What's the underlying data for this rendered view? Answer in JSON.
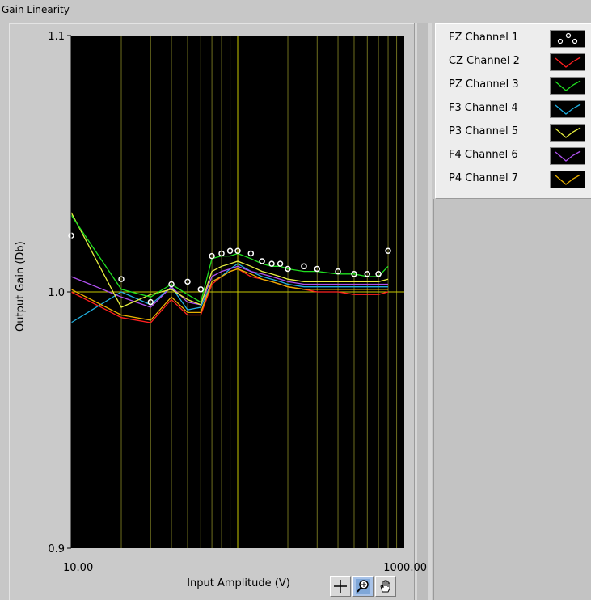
{
  "window": {
    "title": "Gain Linearity"
  },
  "colors": {
    "plot_bg": "#000000",
    "grid": "#6e6e1e",
    "reference": "#c8c800"
  },
  "legend": {
    "items": [
      {
        "label": "FZ Channel 1",
        "color": "#ffffff",
        "style": "circles"
      },
      {
        "label": "CZ Channel 2",
        "color": "#ff2020",
        "style": "line"
      },
      {
        "label": "PZ Channel 3",
        "color": "#20e020",
        "style": "line"
      },
      {
        "label": "F3 Channel 4",
        "color": "#20b0e0",
        "style": "line"
      },
      {
        "label": "P3 Channel 5",
        "color": "#e8f040",
        "style": "line"
      },
      {
        "label": "F4 Channel 6",
        "color": "#b050f0",
        "style": "line"
      },
      {
        "label": "P4 Channel 7",
        "color": "#e8b000",
        "style": "line"
      }
    ]
  },
  "toolbar": {
    "tools": [
      "cursor-crosshair-icon",
      "zoom-icon",
      "pan-hand-icon"
    ]
  },
  "chart_data": {
    "type": "line",
    "title": "Gain Linearity",
    "xlabel": "Input Amplitude (V)",
    "ylabel": "Output Gain (Db)",
    "xscale": "log",
    "xlim": [
      10,
      1000
    ],
    "ylim": [
      0.9,
      1.1
    ],
    "x_tick_labels": [
      "10.00",
      "1000.00"
    ],
    "y_tick_labels": [
      "1.1",
      "1.0",
      "0.9"
    ],
    "y_ticks": [
      1.1,
      1.0,
      0.9
    ],
    "grid": true,
    "legend_position": "top-right",
    "x": [
      10,
      20,
      30,
      40,
      50,
      60,
      70,
      80,
      90,
      100,
      120,
      140,
      160,
      180,
      200,
      250,
      300,
      400,
      500,
      600,
      700,
      800
    ],
    "series": [
      {
        "name": "FZ Channel 1",
        "style": "circles",
        "values": [
          1.022,
          1.005,
          0.996,
          1.003,
          1.004,
          1.001,
          1.014,
          1.015,
          1.016,
          1.016,
          1.015,
          1.012,
          1.011,
          1.011,
          1.009,
          1.01,
          1.009,
          1.008,
          1.007,
          1.007,
          1.007,
          1.016
        ]
      },
      {
        "name": "CZ Channel 2",
        "values": [
          1.0,
          0.99,
          0.988,
          0.997,
          0.991,
          0.991,
          1.003,
          1.006,
          1.008,
          1.009,
          1.006,
          1.005,
          1.004,
          1.003,
          1.002,
          1.001,
          1.0,
          1.0,
          0.999,
          0.999,
          0.999,
          1.0
        ]
      },
      {
        "name": "PZ Channel 3",
        "values": [
          1.03,
          1.001,
          0.998,
          1.003,
          0.999,
          0.996,
          1.013,
          1.014,
          1.014,
          1.015,
          1.013,
          1.011,
          1.01,
          1.01,
          1.009,
          1.008,
          1.008,
          1.007,
          1.007,
          1.006,
          1.006,
          1.01
        ]
      },
      {
        "name": "F3 Channel 4",
        "values": [
          0.988,
          1.0,
          0.995,
          1.002,
          0.993,
          0.994,
          1.004,
          1.006,
          1.009,
          1.011,
          1.008,
          1.006,
          1.005,
          1.004,
          1.003,
          1.002,
          1.002,
          1.002,
          1.002,
          1.002,
          1.002,
          1.002
        ]
      },
      {
        "name": "P3 Channel 5",
        "values": [
          1.031,
          0.994,
          0.999,
          1.001,
          0.997,
          0.995,
          1.008,
          1.01,
          1.011,
          1.012,
          1.01,
          1.008,
          1.007,
          1.006,
          1.005,
          1.004,
          1.004,
          1.004,
          1.004,
          1.004,
          1.004,
          1.005
        ]
      },
      {
        "name": "F4 Channel 6",
        "values": [
          1.006,
          0.998,
          0.994,
          1.002,
          0.996,
          0.995,
          1.006,
          1.008,
          1.009,
          1.01,
          1.008,
          1.007,
          1.006,
          1.005,
          1.004,
          1.003,
          1.003,
          1.003,
          1.003,
          1.003,
          1.003,
          1.003
        ]
      },
      {
        "name": "P4 Channel 7",
        "values": [
          1.001,
          0.991,
          0.989,
          0.998,
          0.992,
          0.992,
          1.004,
          1.006,
          1.008,
          1.009,
          1.007,
          1.005,
          1.004,
          1.003,
          1.002,
          1.001,
          1.001,
          1.001,
          1.001,
          1.001,
          1.001,
          1.001
        ]
      }
    ],
    "reference_line": 1.0
  }
}
